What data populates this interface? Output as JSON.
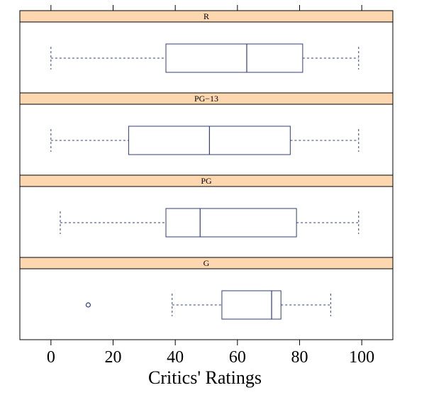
{
  "chart_data": {
    "type": "boxplot",
    "xlabel": "Critics' Ratings",
    "xlim": [
      -10,
      110
    ],
    "xticks": [
      0,
      20,
      40,
      60,
      80,
      100
    ],
    "grid": false,
    "colors": {
      "box": "#2f3d7a",
      "strip": "#fdd7b0",
      "frame": "#000000"
    },
    "panels": [
      {
        "label": "R",
        "whisker_low": 0,
        "q1": 37,
        "median": 63,
        "q3": 81,
        "whisker_high": 99,
        "outliers": []
      },
      {
        "label": "PG−13",
        "whisker_low": 0,
        "q1": 25,
        "median": 51,
        "q3": 77,
        "whisker_high": 99,
        "outliers": []
      },
      {
        "label": "PG",
        "whisker_low": 3,
        "q1": 37,
        "median": 48,
        "q3": 79,
        "whisker_high": 99,
        "outliers": []
      },
      {
        "label": "G",
        "whisker_low": 39,
        "q1": 55,
        "median": 71,
        "q3": 74,
        "whisker_high": 90,
        "outliers": [
          12
        ]
      }
    ]
  }
}
